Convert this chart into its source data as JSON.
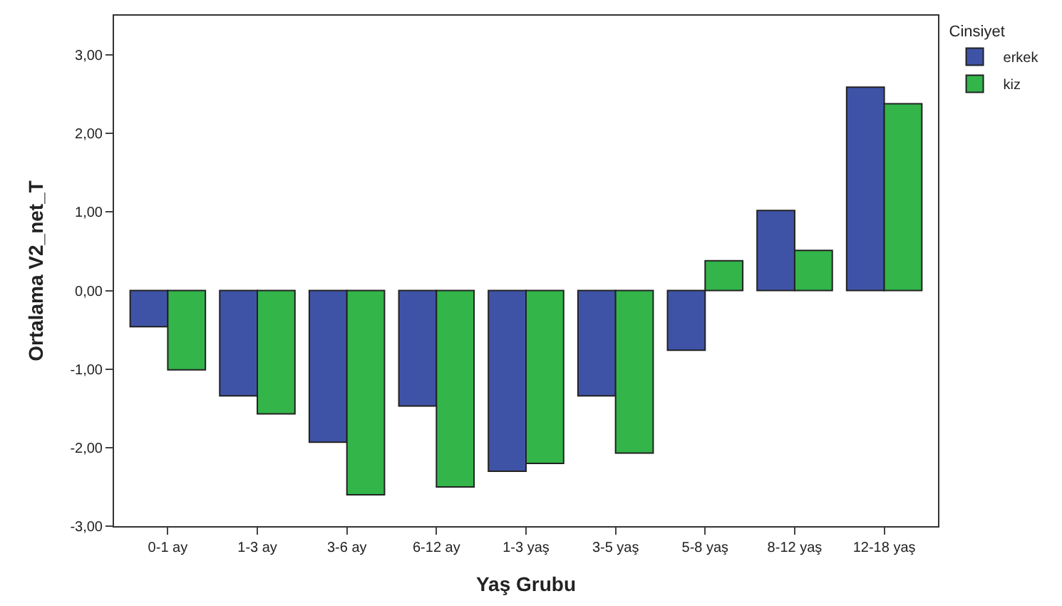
{
  "chart_data": {
    "type": "bar",
    "xlabel": "Yaş Grubu",
    "ylabel": "Ortalama V2_net_T",
    "legend_title": "Cinsiyet",
    "categories": [
      "0-1 ay",
      "1-3 ay",
      "3-6 ay",
      "6-12 ay",
      "1-3 yaş",
      "3-5 yaş",
      "5-8 yaş",
      "8-12 yaş",
      "12-18 yaş"
    ],
    "series": [
      {
        "name": "erkek",
        "color": "#3f53a6",
        "values": [
          -0.46,
          -1.34,
          -1.93,
          -1.47,
          -2.3,
          -1.34,
          -0.76,
          1.02,
          2.59
        ]
      },
      {
        "name": "kiz",
        "color": "#33b54a",
        "values": [
          -1.01,
          -1.57,
          -2.6,
          -2.5,
          -2.2,
          -2.07,
          0.38,
          0.51,
          2.38
        ]
      }
    ],
    "ylim": [
      -3,
      3.5
    ],
    "yticks": [
      {
        "value": -3,
        "label": "-3,00"
      },
      {
        "value": -2,
        "label": "-2,00"
      },
      {
        "value": -1,
        "label": "-1,00"
      },
      {
        "value": 0,
        "label": "0,00"
      },
      {
        "value": 1,
        "label": "1,00"
      },
      {
        "value": 2,
        "label": "2,00"
      },
      {
        "value": 3,
        "label": "3,00"
      }
    ],
    "legend": "top right"
  }
}
